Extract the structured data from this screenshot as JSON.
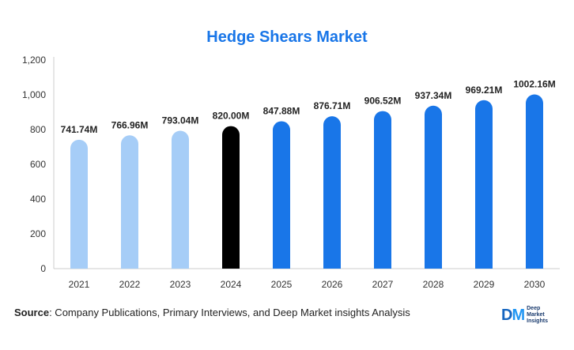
{
  "chart_data": {
    "type": "bar",
    "title": "Hedge Shears Market",
    "xlabel": "",
    "ylabel": "",
    "categories": [
      "2021",
      "2022",
      "2023",
      "2024",
      "2025",
      "2026",
      "2027",
      "2028",
      "2029",
      "2030"
    ],
    "values": [
      741.74,
      766.96,
      793.04,
      820.0,
      847.88,
      876.71,
      906.52,
      937.34,
      969.21,
      1002.16
    ],
    "data_labels": [
      "741.74M",
      "766.96M",
      "793.04M",
      "820.00M",
      "847.88M",
      "876.71M",
      "906.52M",
      "937.34M",
      "969.21M",
      "1002.16M"
    ],
    "bar_colors": [
      "#a6cdf7",
      "#a6cdf7",
      "#a6cdf7",
      "#000000",
      "#1976e8",
      "#1976e8",
      "#1976e8",
      "#1976e8",
      "#1976e8",
      "#1976e8"
    ],
    "ylim": [
      0,
      1200
    ],
    "yticks": [
      0,
      200,
      400,
      600,
      800,
      1000,
      1200
    ],
    "ytick_labels": [
      "0",
      "200",
      "400",
      "600",
      "800",
      "1,000",
      "1,200"
    ],
    "grid": false,
    "legend": "none"
  },
  "colors": {
    "title": "#1976e8",
    "historical": "#a6cdf7",
    "base_year": "#000000",
    "forecast": "#1976e8"
  },
  "source": {
    "label": "Source",
    "text": ": Company Publications, Primary Interviews, and Deep Market insights Analysis"
  },
  "brand": {
    "logo_d": "D",
    "logo_m": "M",
    "line1": "Deep",
    "line2": "Market",
    "line3": "Insights"
  }
}
